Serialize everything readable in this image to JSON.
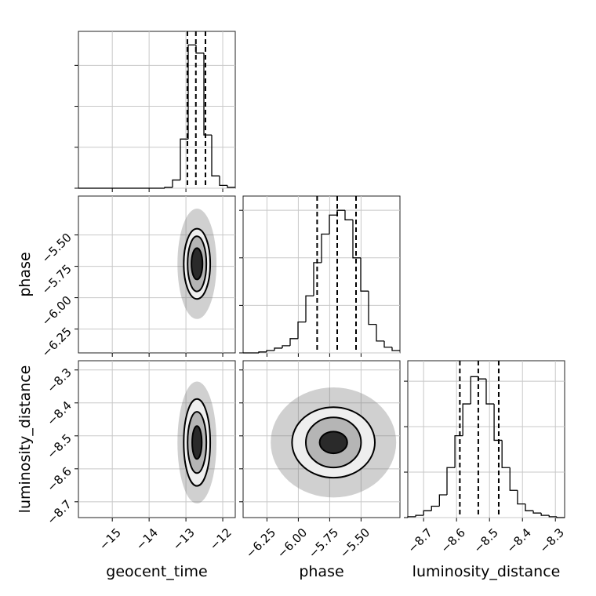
{
  "chart_data": {
    "type": "corner",
    "grid": true,
    "color": "#000000",
    "parameters": [
      {
        "name": "geocent_time",
        "lim": [
          -15.92,
          -11.66
        ],
        "ticks": [
          {
            "value": -15,
            "label": "−15"
          },
          {
            "value": -14,
            "label": "−14"
          },
          {
            "value": -13,
            "label": "−13"
          },
          {
            "value": -12,
            "label": "−12"
          }
        ]
      },
      {
        "name": "phase",
        "lim": [
          -6.44,
          -5.19
        ],
        "ticks": [
          {
            "value": -6.25,
            "label": "−6.25"
          },
          {
            "value": -6.0,
            "label": "−6.00"
          },
          {
            "value": -5.75,
            "label": "−5.75"
          },
          {
            "value": -5.5,
            "label": "−5.50"
          }
        ]
      },
      {
        "name": "luminosity_distance",
        "lim": [
          -8.748,
          -8.272
        ],
        "ticks": [
          {
            "value": -8.7,
            "label": "−8.7"
          },
          {
            "value": -8.6,
            "label": "−8.6"
          },
          {
            "value": -8.5,
            "label": "−8.5"
          },
          {
            "value": -8.4,
            "label": "−8.4"
          },
          {
            "value": -8.3,
            "label": "−8.3"
          }
        ]
      }
    ],
    "histograms": [
      {
        "bins": [
          -15.92,
          -15.707,
          -15.494,
          -15.281,
          -15.068,
          -14.855,
          -14.642,
          -14.429,
          -14.216,
          -14.003,
          -13.79,
          -13.577,
          -13.364,
          -13.151,
          -12.938,
          -12.725,
          -12.512,
          -12.299,
          -12.086,
          -11.873,
          -11.66
        ],
        "counts": [
          0,
          0,
          0,
          0,
          0,
          0,
          0,
          0,
          0,
          0,
          0,
          0.02,
          0.2,
          1.2,
          3.5,
          3.3,
          1.3,
          0.3,
          0.07,
          0.02
        ],
        "ylim": [
          0,
          3.83
        ],
        "yticks": [
          0,
          1,
          2,
          3
        ],
        "quantiles": [
          -12.96,
          -12.73,
          -12.47
        ]
      },
      {
        "bins": [
          -6.44,
          -6.3775,
          -6.315,
          -6.2525,
          -6.19,
          -6.1275,
          -6.065,
          -6.0025,
          -5.94,
          -5.8775,
          -5.815,
          -5.7525,
          -5.69,
          -5.6275,
          -5.565,
          -5.5025,
          -5.44,
          -5.3775,
          -5.315,
          -5.2525,
          -5.19
        ],
        "counts": [
          0,
          0,
          0.02,
          0.05,
          0.1,
          0.15,
          0.3,
          0.65,
          1.2,
          1.9,
          2.5,
          2.9,
          3.0,
          2.8,
          2.0,
          1.3,
          0.6,
          0.25,
          0.12,
          0.05
        ],
        "ylim": [
          0,
          3.3
        ],
        "yticks": [
          0,
          1,
          2,
          3
        ],
        "quantiles": [
          -5.85,
          -5.69,
          -5.54
        ]
      },
      {
        "bins": [
          -8.748,
          -8.724,
          -8.7,
          -8.676,
          -8.652,
          -8.629,
          -8.605,
          -8.581,
          -8.557,
          -8.534,
          -8.51,
          -8.486,
          -8.462,
          -8.438,
          -8.415,
          -8.391,
          -8.367,
          -8.343,
          -8.319,
          -8.296,
          -8.272
        ],
        "counts": [
          0.02,
          0.05,
          0.15,
          0.25,
          0.5,
          1.1,
          1.8,
          2.5,
          3.1,
          3.05,
          2.5,
          1.7,
          1.1,
          0.6,
          0.3,
          0.15,
          0.1,
          0.05,
          0.02,
          0
        ],
        "ylim": [
          0,
          3.45
        ],
        "yticks": [
          0,
          1,
          2,
          3
        ],
        "quantiles": [
          -8.59,
          -8.534,
          -8.472
        ]
      }
    ],
    "pairs": [
      {
        "cloud": {
          "x": -12.7,
          "y": -5.73,
          "rx": 0.53,
          "ry": 0.44
        },
        "contours": [
          {
            "x": -12.7,
            "y": -5.73,
            "rx": 0.36,
            "ry": 0.28
          },
          {
            "x": -12.7,
            "y": -5.73,
            "rx": 0.255,
            "ry": 0.22
          },
          {
            "x": -12.7,
            "y": -5.73,
            "rx": 0.15,
            "ry": 0.125
          }
        ]
      },
      {
        "cloud": {
          "x": -12.7,
          "y": -8.52,
          "rx": 0.53,
          "ry": 0.185
        },
        "contours": [
          {
            "x": -12.7,
            "y": -8.52,
            "rx": 0.36,
            "ry": 0.132
          },
          {
            "x": -12.7,
            "y": -8.52,
            "rx": 0.255,
            "ry": 0.093
          },
          {
            "x": -12.7,
            "y": -8.52,
            "rx": 0.13,
            "ry": 0.05
          }
        ]
      },
      {
        "cloud": {
          "x": -5.72,
          "y": -8.52,
          "rx": 0.5,
          "ry": 0.167
        },
        "contours": [
          {
            "x": -5.72,
            "y": -8.52,
            "rx": 0.33,
            "ry": 0.107
          },
          {
            "x": -5.72,
            "y": -8.52,
            "rx": 0.22,
            "ry": 0.076
          },
          {
            "x": -5.72,
            "y": -8.52,
            "rx": 0.11,
            "ry": 0.033
          }
        ]
      }
    ]
  }
}
